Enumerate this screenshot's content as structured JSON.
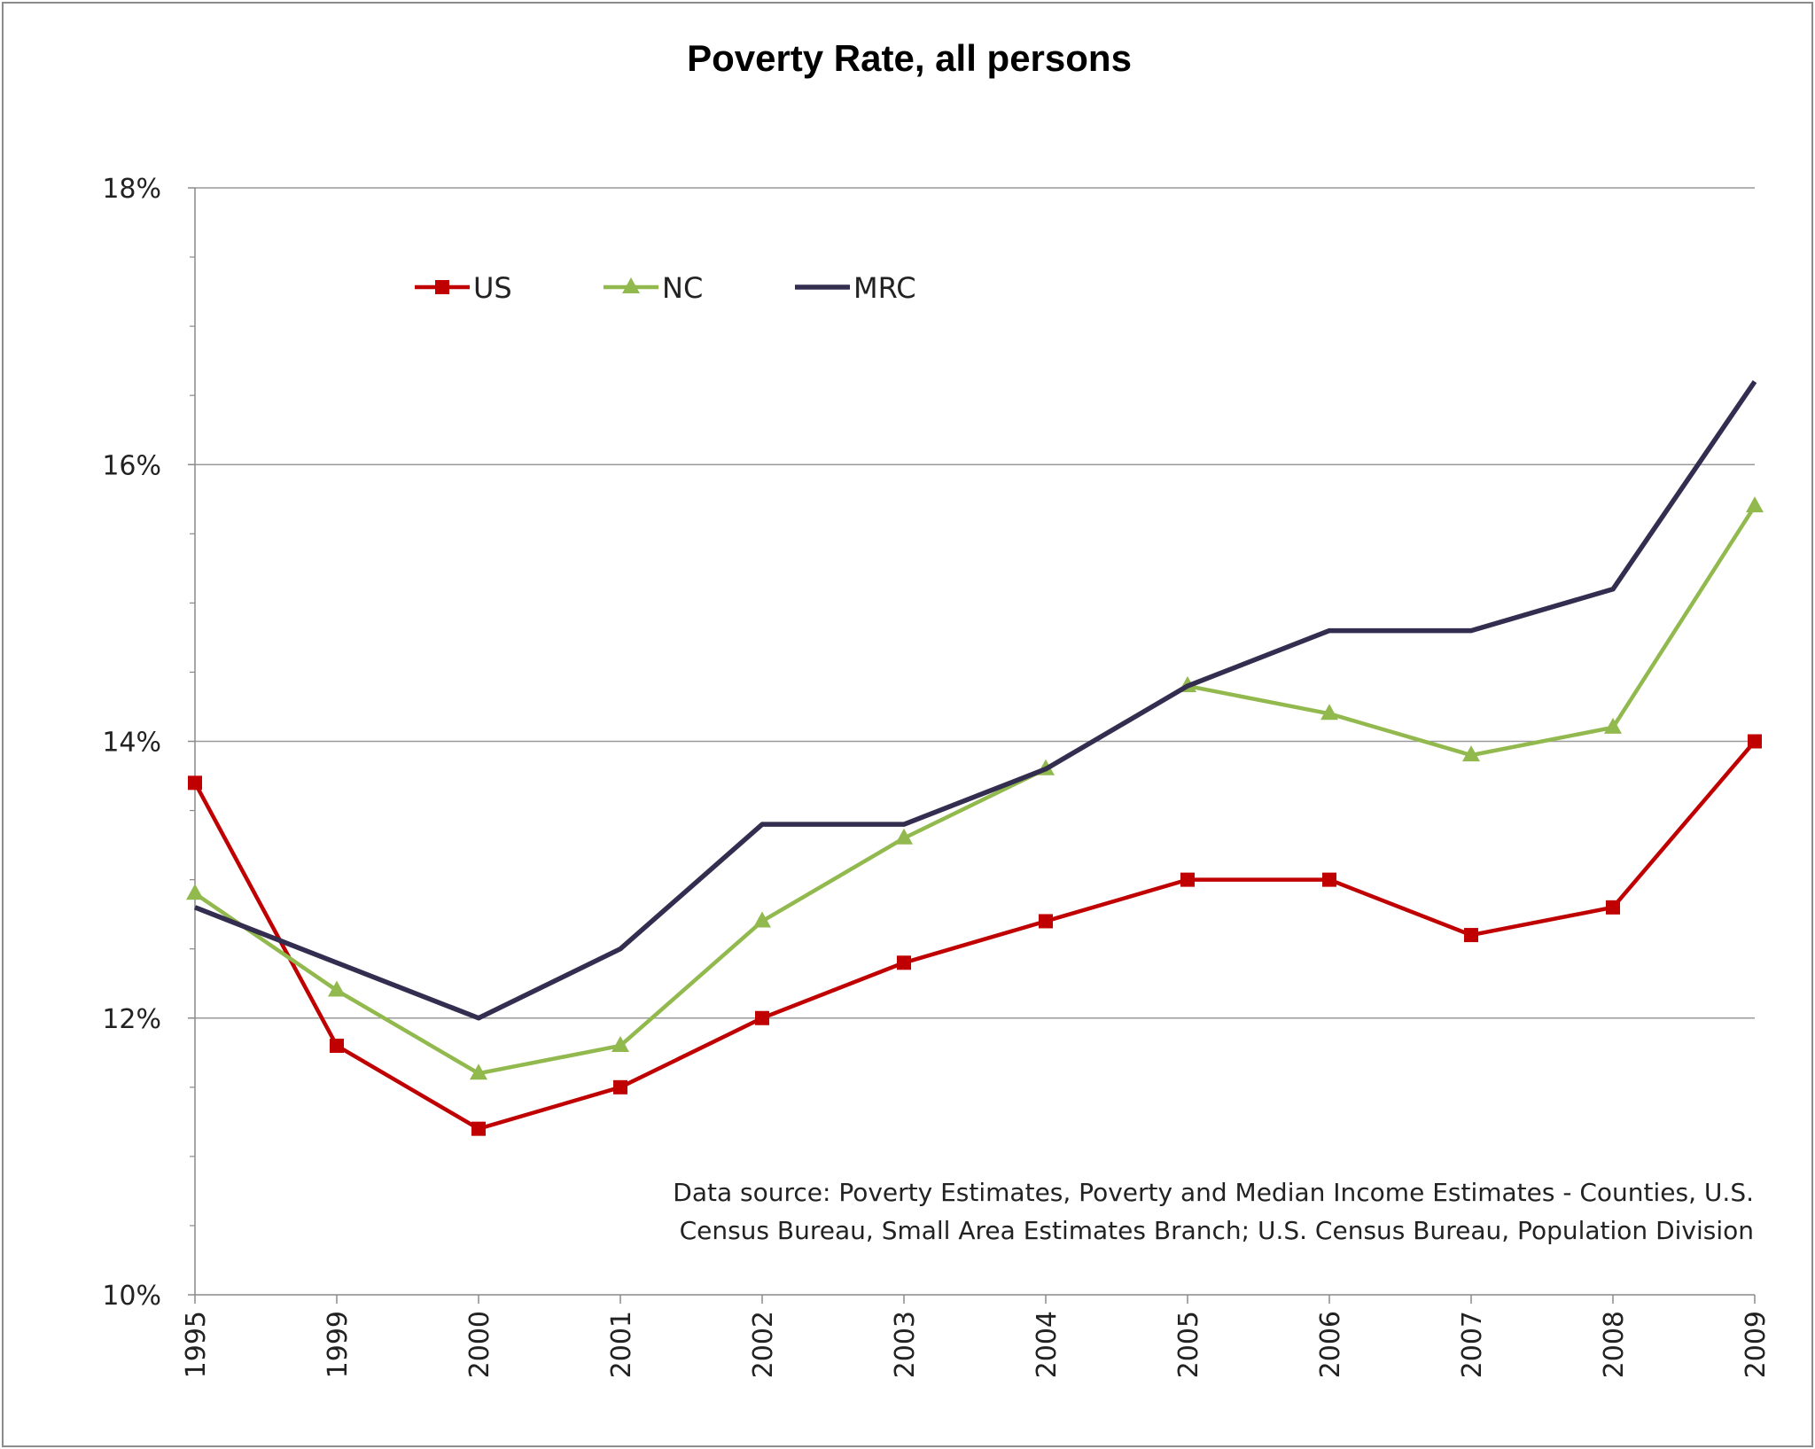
{
  "chart_data": {
    "type": "line",
    "title": "Poverty Rate, all persons",
    "xlabel": "",
    "ylabel": "",
    "categories": [
      "1995",
      "1999",
      "2000",
      "2001",
      "2002",
      "2003",
      "2004",
      "2005",
      "2006",
      "2007",
      "2008",
      "2009"
    ],
    "y_ticks": [
      "10%",
      "12%",
      "14%",
      "16%",
      "18%"
    ],
    "ylim": [
      10,
      18
    ],
    "y_unit": "%",
    "grid": "horizontal major gridlines",
    "legend_position": "top-left",
    "series": [
      {
        "name": "US",
        "color": "#c00000",
        "marker": "square",
        "values": [
          13.7,
          11.8,
          11.2,
          11.5,
          12.0,
          12.4,
          12.7,
          13.0,
          13.0,
          12.6,
          12.8,
          14.0
        ]
      },
      {
        "name": "NC",
        "color": "#92b94e",
        "marker": "triangle",
        "values": [
          12.9,
          12.2,
          11.6,
          11.8,
          12.7,
          13.3,
          13.8,
          14.4,
          14.2,
          13.9,
          14.1,
          15.7
        ]
      },
      {
        "name": "MRC",
        "color": "#332e4f",
        "marker": "none",
        "values": [
          12.8,
          12.4,
          12.0,
          12.5,
          13.4,
          13.4,
          13.8,
          14.4,
          14.8,
          14.8,
          15.1,
          16.6
        ]
      }
    ],
    "annotation": [
      "Data source: Poverty Estimates, Poverty and Median Income Estimates - Counties, U.S.",
      "Census Bureau, Small Area Estimates Branch; U.S. Census Bureau, Population Division"
    ]
  }
}
